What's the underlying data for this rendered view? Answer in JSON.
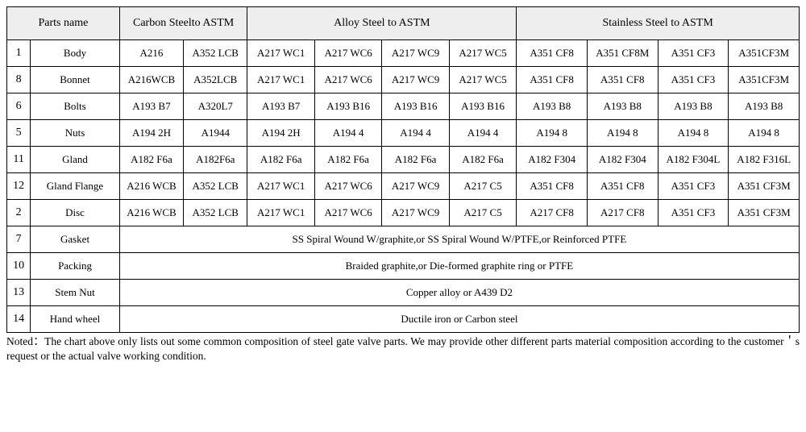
{
  "headers": {
    "parts_name": "Parts name",
    "carbon_steel": "Carbon Steelto ASTM",
    "alloy_steel": "Alloy Steel to ASTM",
    "stainless_steel": "Stainless Steel to ASTM"
  },
  "rows": [
    {
      "idx": "1",
      "name": "Body",
      "cs": [
        "A216",
        "A352 LCB"
      ],
      "al": [
        "A217 WC1",
        "A217 WC6",
        "A217 WC9",
        "A217 WC5"
      ],
      "ss": [
        "A351 CF8",
        "A351 CF8M",
        "A351 CF3",
        "A351CF3M"
      ]
    },
    {
      "idx": "8",
      "name": "Bonnet",
      "cs": [
        "A216WCB",
        "A352LCB"
      ],
      "al": [
        "A217 WC1",
        "A217 WC6",
        "A217 WC9",
        "A217 WC5"
      ],
      "ss": [
        "A351 CF8",
        "A351 CF8",
        "A351 CF3",
        "A351CF3M"
      ]
    },
    {
      "idx": "6",
      "name": "Bolts",
      "cs": [
        "A193 B7",
        "A320L7"
      ],
      "al": [
        "A193 B7",
        "A193 B16",
        "A193 B16",
        "A193 B16"
      ],
      "ss": [
        "A193 B8",
        "A193 B8",
        "A193 B8",
        "A193 B8"
      ]
    },
    {
      "idx": "5",
      "name": "Nuts",
      "cs": [
        "A194 2H",
        "A1944"
      ],
      "al": [
        "A194 2H",
        "A194 4",
        "A194 4",
        "A194 4"
      ],
      "ss": [
        "A194 8",
        "A194 8",
        "A194 8",
        "A194 8"
      ]
    },
    {
      "idx": "11",
      "name": "Gland",
      "cs": [
        "A182 F6a",
        "A182F6a"
      ],
      "al": [
        "A182 F6a",
        "A182 F6a",
        "A182 F6a",
        "A182 F6a"
      ],
      "ss": [
        "A182 F304",
        "A182 F304",
        "A182 F304L",
        "A182 F316L"
      ]
    },
    {
      "idx": "12",
      "name": "Gland Flange",
      "cs": [
        "A216 WCB",
        "A352 LCB"
      ],
      "al": [
        "A217 WC1",
        "A217 WC6",
        "A217 WC9",
        "A217 C5"
      ],
      "ss": [
        "A351 CF8",
        "A351 CF8",
        "A351 CF3",
        "A351 CF3M"
      ]
    },
    {
      "idx": "2",
      "name": "Disc",
      "cs": [
        "A216 WCB",
        "A352 LCB"
      ],
      "al": [
        "A217 WC1",
        "A217 WC6",
        "A217 WC9",
        "A217 C5"
      ],
      "ss": [
        "A217 CF8",
        "A217 CF8",
        "A351 CF3",
        "A351 CF3M"
      ]
    }
  ],
  "span_rows": [
    {
      "idx": "7",
      "name": "Gasket",
      "text": "SS Spiral Wound W/graphite,or SS Spiral Wound W/PTFE,or Reinforced PTFE"
    },
    {
      "idx": "10",
      "name": "Packing",
      "text": "Braided graphite,or Die-formed graphite ring or PTFE"
    },
    {
      "idx": "13",
      "name": "Stem Nut",
      "text": "Copper alloy or A439 D2"
    },
    {
      "idx": "14",
      "name": "Hand wheel",
      "text": "Ductile iron or Carbon steel"
    }
  ],
  "note": "Noted：The chart above only lists out some common composition of steel gate valve parts. We may provide other different parts material composition according to the customer＇s request or the actual valve working condition."
}
